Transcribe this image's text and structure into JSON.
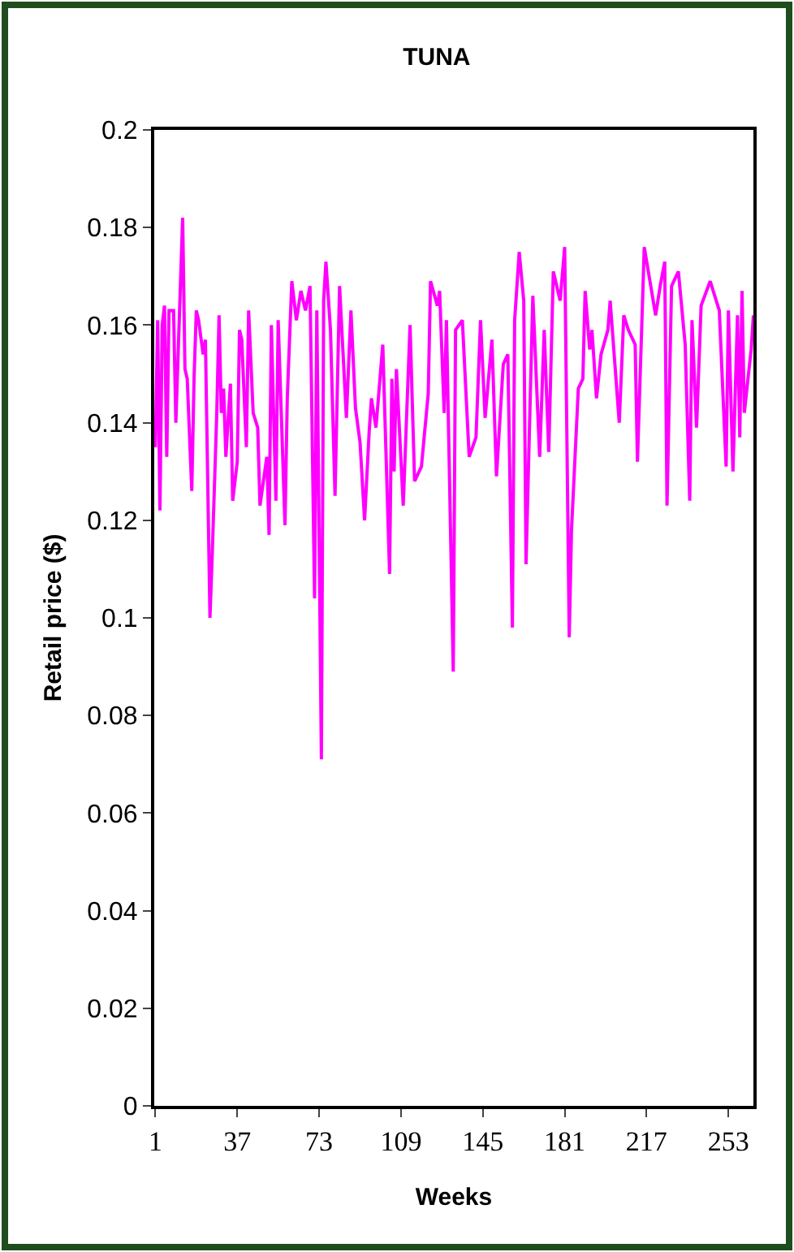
{
  "chart_data": {
    "type": "line",
    "title": "TUNA",
    "xlabel": "Weeks",
    "ylabel": "Retail price ($)",
    "x": [
      1,
      2,
      3,
      4,
      5,
      6,
      7,
      9,
      10,
      12,
      13,
      14,
      15,
      17,
      18,
      19,
      20,
      22,
      23,
      25,
      26,
      28,
      29,
      30,
      31,
      32,
      34,
      35,
      37,
      38,
      39,
      41,
      42,
      44,
      46,
      47,
      50,
      51,
      52,
      54,
      55,
      58,
      59,
      61,
      63,
      65,
      67,
      69,
      71,
      72,
      74,
      75,
      76,
      78,
      80,
      82,
      85,
      87,
      89,
      91,
      93,
      95,
      96,
      98,
      101,
      104,
      105,
      106,
      107,
      110,
      113,
      115,
      118,
      121,
      122,
      125,
      126,
      128,
      129,
      132,
      133,
      136,
      139,
      142,
      144,
      146,
      149,
      151,
      154,
      156,
      158,
      159,
      161,
      163,
      164,
      167,
      170,
      172,
      174,
      176,
      179,
      181,
      183,
      184,
      187,
      189,
      190,
      192,
      193,
      195,
      197,
      200,
      201,
      205,
      207,
      209,
      212,
      213,
      216,
      221,
      223,
      225,
      226,
      228,
      231,
      234,
      236,
      237,
      239,
      241,
      245,
      249,
      252,
      253,
      255,
      257,
      258,
      259,
      260,
      263,
      264
    ],
    "series": [
      {
        "color": "#ff00ff",
        "values": [
          0.135,
          0.161,
          0.122,
          0.16,
          0.164,
          0.133,
          0.163,
          0.163,
          0.14,
          0.168,
          0.182,
          0.151,
          0.149,
          0.126,
          0.149,
          0.163,
          0.161,
          0.154,
          0.157,
          0.1,
          0.113,
          0.142,
          0.162,
          0.142,
          0.147,
          0.133,
          0.148,
          0.124,
          0.132,
          0.159,
          0.157,
          0.135,
          0.163,
          0.142,
          0.139,
          0.123,
          0.133,
          0.117,
          0.16,
          0.124,
          0.161,
          0.119,
          0.145,
          0.169,
          0.161,
          0.167,
          0.163,
          0.168,
          0.104,
          0.163,
          0.071,
          0.165,
          0.173,
          0.159,
          0.125,
          0.168,
          0.141,
          0.163,
          0.143,
          0.136,
          0.12,
          0.138,
          0.145,
          0.139,
          0.156,
          0.109,
          0.149,
          0.13,
          0.151,
          0.123,
          0.16,
          0.128,
          0.131,
          0.146,
          0.169,
          0.164,
          0.167,
          0.142,
          0.161,
          0.089,
          0.159,
          0.161,
          0.133,
          0.137,
          0.161,
          0.141,
          0.157,
          0.129,
          0.152,
          0.154,
          0.098,
          0.161,
          0.175,
          0.165,
          0.111,
          0.166,
          0.133,
          0.159,
          0.134,
          0.171,
          0.165,
          0.176,
          0.096,
          0.118,
          0.147,
          0.149,
          0.167,
          0.155,
          0.159,
          0.145,
          0.154,
          0.159,
          0.165,
          0.14,
          0.162,
          0.159,
          0.156,
          0.132,
          0.176,
          0.162,
          0.168,
          0.173,
          0.123,
          0.168,
          0.171,
          0.156,
          0.124,
          0.161,
          0.139,
          0.164,
          0.169,
          0.163,
          0.131,
          0.163,
          0.13,
          0.162,
          0.137,
          0.167,
          0.142,
          0.155,
          0.162
        ]
      }
    ],
    "xlim": [
      0.5,
      264
    ],
    "xticks": [
      1,
      37,
      73,
      109,
      145,
      181,
      217,
      253
    ],
    "ylim": [
      0,
      0.2
    ],
    "yticks": [
      0,
      0.02,
      0.04,
      0.06,
      0.08,
      0.1,
      0.12,
      0.14,
      0.16,
      0.18,
      0.2
    ],
    "marker": "none",
    "line_style": "solid"
  }
}
